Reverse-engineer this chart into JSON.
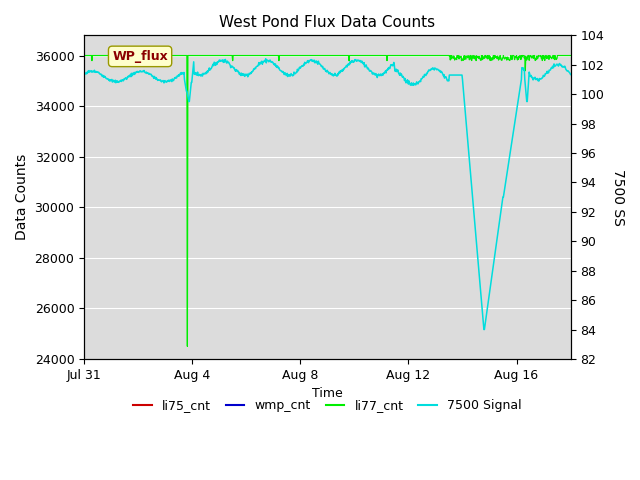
{
  "title": "West Pond Flux Data Counts",
  "xlabel": "Time",
  "ylabel_left": "Data Counts",
  "ylabel_right": "7500 SS",
  "ylim_left": [
    24000,
    36800
  ],
  "ylim_right": [
    82,
    104
  ],
  "yticks_left": [
    24000,
    26000,
    28000,
    30000,
    32000,
    34000,
    36000
  ],
  "yticks_right": [
    82,
    84,
    86,
    88,
    90,
    92,
    94,
    96,
    98,
    100,
    102,
    104
  ],
  "xtick_labels": [
    "Jul 31",
    "Aug 4",
    "Aug 8",
    "Aug 12",
    "Aug 16"
  ],
  "xtick_positions": [
    0,
    4,
    8,
    12,
    16
  ],
  "xlim": [
    0,
    18
  ],
  "bg_color": "#dcdcdc",
  "fig_bg": "#ffffff",
  "wp_flux_box_color": "#ffffcc",
  "wp_flux_text_color": "#8b0000",
  "wp_flux_edge_color": "#999900",
  "li77_color": "#00ee00",
  "signal_color": "#00dddd",
  "li75_color": "#cc0000",
  "wmp_color": "#0000cc",
  "legend_entries": [
    "li75_cnt",
    "wmp_cnt",
    "li77_cnt",
    "7500 Signal"
  ],
  "grid_color": "#ffffff",
  "title_fontsize": 11,
  "axis_label_fontsize": 10,
  "tick_fontsize": 9
}
